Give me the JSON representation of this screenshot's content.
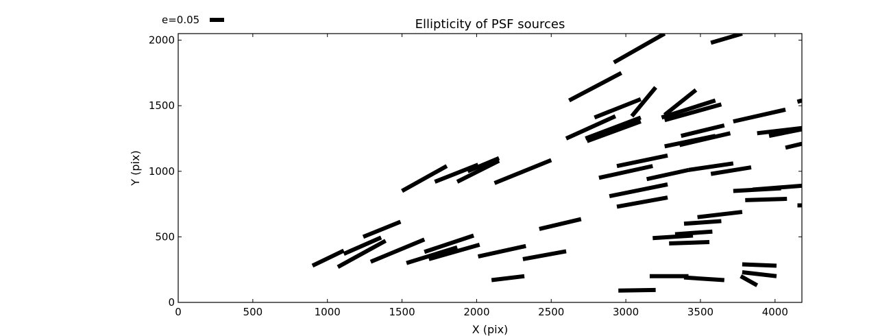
{
  "chart_data": {
    "type": "scatter",
    "title": "Ellipticity of PSF sources",
    "xlabel": "X (pix)",
    "ylabel": "Y (pix)",
    "xlim": [
      0,
      4180
    ],
    "ylim": [
      0,
      2050
    ],
    "xticks": [
      0,
      500,
      1000,
      1500,
      2000,
      2500,
      3000,
      3500,
      4000
    ],
    "yticks": [
      0,
      500,
      1000,
      1500,
      2000
    ],
    "grid": false,
    "legend": {
      "label": "e=0.05",
      "placement": "top-left, above plot"
    },
    "sticks": [
      {
        "x1": 900,
        "y1": 280,
        "x2": 1110,
        "y2": 395
      },
      {
        "x1": 1110,
        "y1": 370,
        "x2": 1360,
        "y2": 495
      },
      {
        "x1": 1070,
        "y1": 270,
        "x2": 1390,
        "y2": 470
      },
      {
        "x1": 1240,
        "y1": 500,
        "x2": 1490,
        "y2": 615
      },
      {
        "x1": 1290,
        "y1": 310,
        "x2": 1650,
        "y2": 480
      },
      {
        "x1": 1500,
        "y1": 850,
        "x2": 1800,
        "y2": 1040
      },
      {
        "x1": 1530,
        "y1": 300,
        "x2": 1870,
        "y2": 420
      },
      {
        "x1": 1650,
        "y1": 385,
        "x2": 1980,
        "y2": 510
      },
      {
        "x1": 1680,
        "y1": 330,
        "x2": 2020,
        "y2": 440
      },
      {
        "x1": 1720,
        "y1": 920,
        "x2": 2010,
        "y2": 1050
      },
      {
        "x1": 1870,
        "y1": 920,
        "x2": 2150,
        "y2": 1080
      },
      {
        "x1": 1940,
        "y1": 1000,
        "x2": 2150,
        "y2": 1100
      },
      {
        "x1": 2010,
        "y1": 350,
        "x2": 2330,
        "y2": 430
      },
      {
        "x1": 2100,
        "y1": 170,
        "x2": 2320,
        "y2": 200
      },
      {
        "x1": 2120,
        "y1": 910,
        "x2": 2500,
        "y2": 1085
      },
      {
        "x1": 2310,
        "y1": 330,
        "x2": 2600,
        "y2": 390
      },
      {
        "x1": 2420,
        "y1": 560,
        "x2": 2700,
        "y2": 635
      },
      {
        "x1": 2600,
        "y1": 1250,
        "x2": 2930,
        "y2": 1420
      },
      {
        "x1": 2620,
        "y1": 1540,
        "x2": 2970,
        "y2": 1750
      },
      {
        "x1": 2730,
        "y1": 1250,
        "x2": 3100,
        "y2": 1410
      },
      {
        "x1": 2740,
        "y1": 1230,
        "x2": 3100,
        "y2": 1380
      },
      {
        "x1": 2790,
        "y1": 1410,
        "x2": 3100,
        "y2": 1550
      },
      {
        "x1": 2820,
        "y1": 950,
        "x2": 3180,
        "y2": 1040
      },
      {
        "x1": 2890,
        "y1": 810,
        "x2": 3280,
        "y2": 900
      },
      {
        "x1": 2920,
        "y1": 1830,
        "x2": 3260,
        "y2": 2050
      },
      {
        "x1": 2940,
        "y1": 730,
        "x2": 3280,
        "y2": 800
      },
      {
        "x1": 2940,
        "y1": 1040,
        "x2": 3280,
        "y2": 1120
      },
      {
        "x1": 2950,
        "y1": 90,
        "x2": 3200,
        "y2": 95
      },
      {
        "x1": 3040,
        "y1": 1420,
        "x2": 3200,
        "y2": 1640
      },
      {
        "x1": 3140,
        "y1": 940,
        "x2": 3420,
        "y2": 1010
      },
      {
        "x1": 3160,
        "y1": 200,
        "x2": 3420,
        "y2": 200
      },
      {
        "x1": 3180,
        "y1": 490,
        "x2": 3450,
        "y2": 510
      },
      {
        "x1": 3240,
        "y1": 1410,
        "x2": 3600,
        "y2": 1540
      },
      {
        "x1": 3260,
        "y1": 1390,
        "x2": 3640,
        "y2": 1510
      },
      {
        "x1": 3260,
        "y1": 1190,
        "x2": 3600,
        "y2": 1270
      },
      {
        "x1": 3260,
        "y1": 1430,
        "x2": 3470,
        "y2": 1620
      },
      {
        "x1": 3290,
        "y1": 450,
        "x2": 3560,
        "y2": 460
      },
      {
        "x1": 3330,
        "y1": 520,
        "x2": 3580,
        "y2": 540
      },
      {
        "x1": 3360,
        "y1": 1200,
        "x2": 3700,
        "y2": 1290
      },
      {
        "x1": 3370,
        "y1": 1270,
        "x2": 3660,
        "y2": 1350
      },
      {
        "x1": 3390,
        "y1": 190,
        "x2": 3660,
        "y2": 170
      },
      {
        "x1": 3390,
        "y1": 600,
        "x2": 3640,
        "y2": 620
      },
      {
        "x1": 3420,
        "y1": 1010,
        "x2": 3720,
        "y2": 1060
      },
      {
        "x1": 3480,
        "y1": 650,
        "x2": 3780,
        "y2": 690
      },
      {
        "x1": 3570,
        "y1": 980,
        "x2": 3840,
        "y2": 1030
      },
      {
        "x1": 3570,
        "y1": 1980,
        "x2": 3780,
        "y2": 2050
      },
      {
        "x1": 3720,
        "y1": 850,
        "x2": 4040,
        "y2": 870
      },
      {
        "x1": 3720,
        "y1": 1380,
        "x2": 4070,
        "y2": 1470
      },
      {
        "x1": 3780,
        "y1": 290,
        "x2": 4010,
        "y2": 280
      },
      {
        "x1": 3780,
        "y1": 230,
        "x2": 4010,
        "y2": 200
      },
      {
        "x1": 3770,
        "y1": 200,
        "x2": 3880,
        "y2": 130
      },
      {
        "x1": 3800,
        "y1": 780,
        "x2": 4080,
        "y2": 790
      },
      {
        "x1": 3850,
        "y1": 860,
        "x2": 4180,
        "y2": 890
      },
      {
        "x1": 3880,
        "y1": 1290,
        "x2": 4180,
        "y2": 1330
      },
      {
        "x1": 3960,
        "y1": 1270,
        "x2": 4180,
        "y2": 1320
      },
      {
        "x1": 4070,
        "y1": 1180,
        "x2": 4180,
        "y2": 1210
      },
      {
        "x1": 4150,
        "y1": 1530,
        "x2": 4180,
        "y2": 1540
      },
      {
        "x1": 4150,
        "y1": 740,
        "x2": 4180,
        "y2": 740
      }
    ]
  }
}
